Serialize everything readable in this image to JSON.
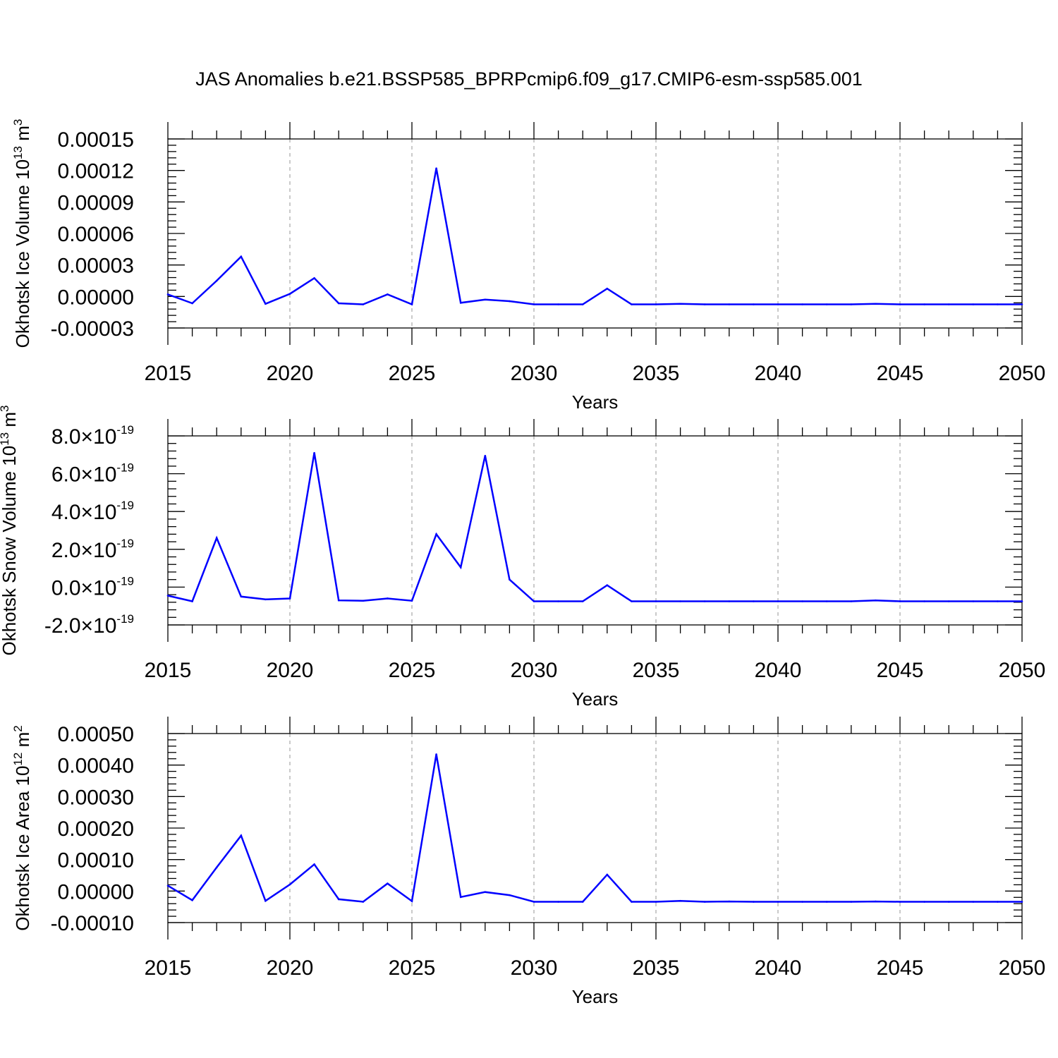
{
  "figure": {
    "title": "JAS Anomalies b.e21.BSSP585_BPRPcmip6.f09_g17.CMIP6-esm-ssp585.001"
  },
  "chart_data": [
    {
      "type": "line",
      "title": "",
      "xlabel": "Years",
      "ylabel": "Okhotsk Ice Volume 10",
      "ylabel_exponent": "13",
      "ylabel_unit": " m",
      "ylabel_unit_exponent": "3",
      "xlim": [
        2015,
        2050
      ],
      "ylim": [
        -3e-05,
        0.00015
      ],
      "x_ticks": [
        2015,
        2020,
        2025,
        2030,
        2035,
        2040,
        2045,
        2050
      ],
      "x_tick_labels": [
        "2015",
        "2020",
        "2025",
        "2030",
        "2035",
        "2040",
        "2045",
        "2050"
      ],
      "y_ticks": [
        -3e-05,
        0.0,
        3e-05,
        6e-05,
        9e-05,
        0.00012,
        0.00015
      ],
      "y_tick_labels": [
        "-0.00003",
        "0.00000",
        "0.00003",
        "0.00006",
        "0.00009",
        "0.00012",
        "0.00015"
      ],
      "grid": "vertical dashed at major x ticks",
      "line_color": "#0000ff",
      "x": [
        2015,
        2016,
        2017,
        2018,
        2019,
        2020,
        2021,
        2022,
        2023,
        2024,
        2025,
        2026,
        2027,
        2028,
        2029,
        2030,
        2031,
        2032,
        2033,
        2034,
        2035,
        2036,
        2037,
        2038,
        2039,
        2040,
        2041,
        2042,
        2043,
        2044,
        2045,
        2046,
        2047,
        2048,
        2049,
        2050
      ],
      "values": [
        2e-06,
        -6.5e-06,
        1.5e-05,
        3.8e-05,
        -7e-06,
        2.5e-06,
        1.75e-05,
        -6.5e-06,
        -7.5e-06,
        2e-06,
        -7.5e-06,
        0.000122,
        -6e-06,
        -3e-06,
        -4.5e-06,
        -7.5e-06,
        -7.5e-06,
        -7.5e-06,
        7.5e-06,
        -7.5e-06,
        -7.5e-06,
        -7e-06,
        -7.5e-06,
        -7.5e-06,
        -7.5e-06,
        -7.5e-06,
        -7.5e-06,
        -7.5e-06,
        -7.5e-06,
        -7e-06,
        -7.5e-06,
        -7.5e-06,
        -7.5e-06,
        -7.5e-06,
        -7.5e-06,
        -7.5e-06
      ]
    },
    {
      "type": "line",
      "title": "",
      "xlabel": "Years",
      "ylabel": "Okhotsk Snow Volume 10",
      "ylabel_exponent": "13",
      "ylabel_unit": " m",
      "ylabel_unit_exponent": "3",
      "xlim": [
        2015,
        2050
      ],
      "ylim": [
        -2e-19,
        8e-19
      ],
      "x_ticks": [
        2015,
        2020,
        2025,
        2030,
        2035,
        2040,
        2045,
        2050
      ],
      "x_tick_labels": [
        "2015",
        "2020",
        "2025",
        "2030",
        "2035",
        "2040",
        "2045",
        "2050"
      ],
      "y_ticks": [
        -2e-19,
        0.0,
        2e-19,
        4e-19,
        6e-19,
        8e-19
      ],
      "y_tick_mantissas": [
        "-2.0",
        "0.0",
        "2.0",
        "4.0",
        "6.0",
        "8.0"
      ],
      "y_tick_times": "×10",
      "y_tick_exponent": "-19",
      "grid": "vertical dashed at major x ticks",
      "line_color": "#0000ff",
      "x": [
        2015,
        2016,
        2017,
        2018,
        2019,
        2020,
        2021,
        2022,
        2023,
        2024,
        2025,
        2026,
        2027,
        2028,
        2029,
        2030,
        2031,
        2032,
        2033,
        2034,
        2035,
        2036,
        2037,
        2038,
        2039,
        2040,
        2041,
        2042,
        2043,
        2044,
        2045,
        2046,
        2047,
        2048,
        2049,
        2050
      ],
      "values": [
        -4.5e-20,
        -7.5e-20,
        2.6e-19,
        -5e-20,
        -6.5e-20,
        -6e-20,
        7.1e-19,
        -7e-20,
        -7.2e-20,
        -6e-20,
        -7.2e-20,
        2.8e-19,
        1.05e-19,
        6.95e-19,
        4e-20,
        -7.5e-20,
        -7.5e-20,
        -7.5e-20,
        1e-20,
        -7.5e-20,
        -7.5e-20,
        -7.5e-20,
        -7.5e-20,
        -7.5e-20,
        -7.5e-20,
        -7.5e-20,
        -7.5e-20,
        -7.5e-20,
        -7.5e-20,
        -7e-20,
        -7.5e-20,
        -7.5e-20,
        -7.5e-20,
        -7.5e-20,
        -7.5e-20,
        -7.5e-20
      ]
    },
    {
      "type": "line",
      "title": "",
      "xlabel": "Years",
      "ylabel": "Okhotsk Ice Area 10",
      "ylabel_exponent": "12",
      "ylabel_unit": " m",
      "ylabel_unit_exponent": "2",
      "xlim": [
        2015,
        2050
      ],
      "ylim": [
        -0.0001,
        0.0005
      ],
      "x_ticks": [
        2015,
        2020,
        2025,
        2030,
        2035,
        2040,
        2045,
        2050
      ],
      "x_tick_labels": [
        "2015",
        "2020",
        "2025",
        "2030",
        "2035",
        "2040",
        "2045",
        "2050"
      ],
      "y_ticks": [
        -0.0001,
        0.0,
        0.0001,
        0.0002,
        0.0003,
        0.0004,
        0.0005
      ],
      "y_tick_labels": [
        "-0.00010",
        "0.00000",
        "0.00010",
        "0.00020",
        "0.00030",
        "0.00040",
        "0.00050"
      ],
      "grid": "vertical dashed at major x ticks",
      "line_color": "#0000ff",
      "x": [
        2015,
        2016,
        2017,
        2018,
        2019,
        2020,
        2021,
        2022,
        2023,
        2024,
        2025,
        2026,
        2027,
        2028,
        2029,
        2030,
        2031,
        2032,
        2033,
        2034,
        2035,
        2036,
        2037,
        2038,
        2039,
        2040,
        2041,
        2042,
        2043,
        2044,
        2045,
        2046,
        2047,
        2048,
        2049,
        2050
      ],
      "values": [
        1.7e-05,
        -2.9e-05,
        7.5e-05,
        0.000176,
        -3.1e-05,
        2.1e-05,
        8.5e-05,
        -2.6e-05,
        -3.4e-05,
        2.4e-05,
        -3.2e-05,
        0.000434,
        -1.9e-05,
        -3e-06,
        -1.3e-05,
        -3.4e-05,
        -3.4e-05,
        -3.4e-05,
        5.2e-05,
        -3.4e-05,
        -3.4e-05,
        -3.1e-05,
        -3.4e-05,
        -3.3e-05,
        -3.4e-05,
        -3.4e-05,
        -3.4e-05,
        -3.4e-05,
        -3.4e-05,
        -3.3e-05,
        -3.4e-05,
        -3.4e-05,
        -3.4e-05,
        -3.4e-05,
        -3.4e-05,
        -3.4e-05
      ]
    }
  ]
}
